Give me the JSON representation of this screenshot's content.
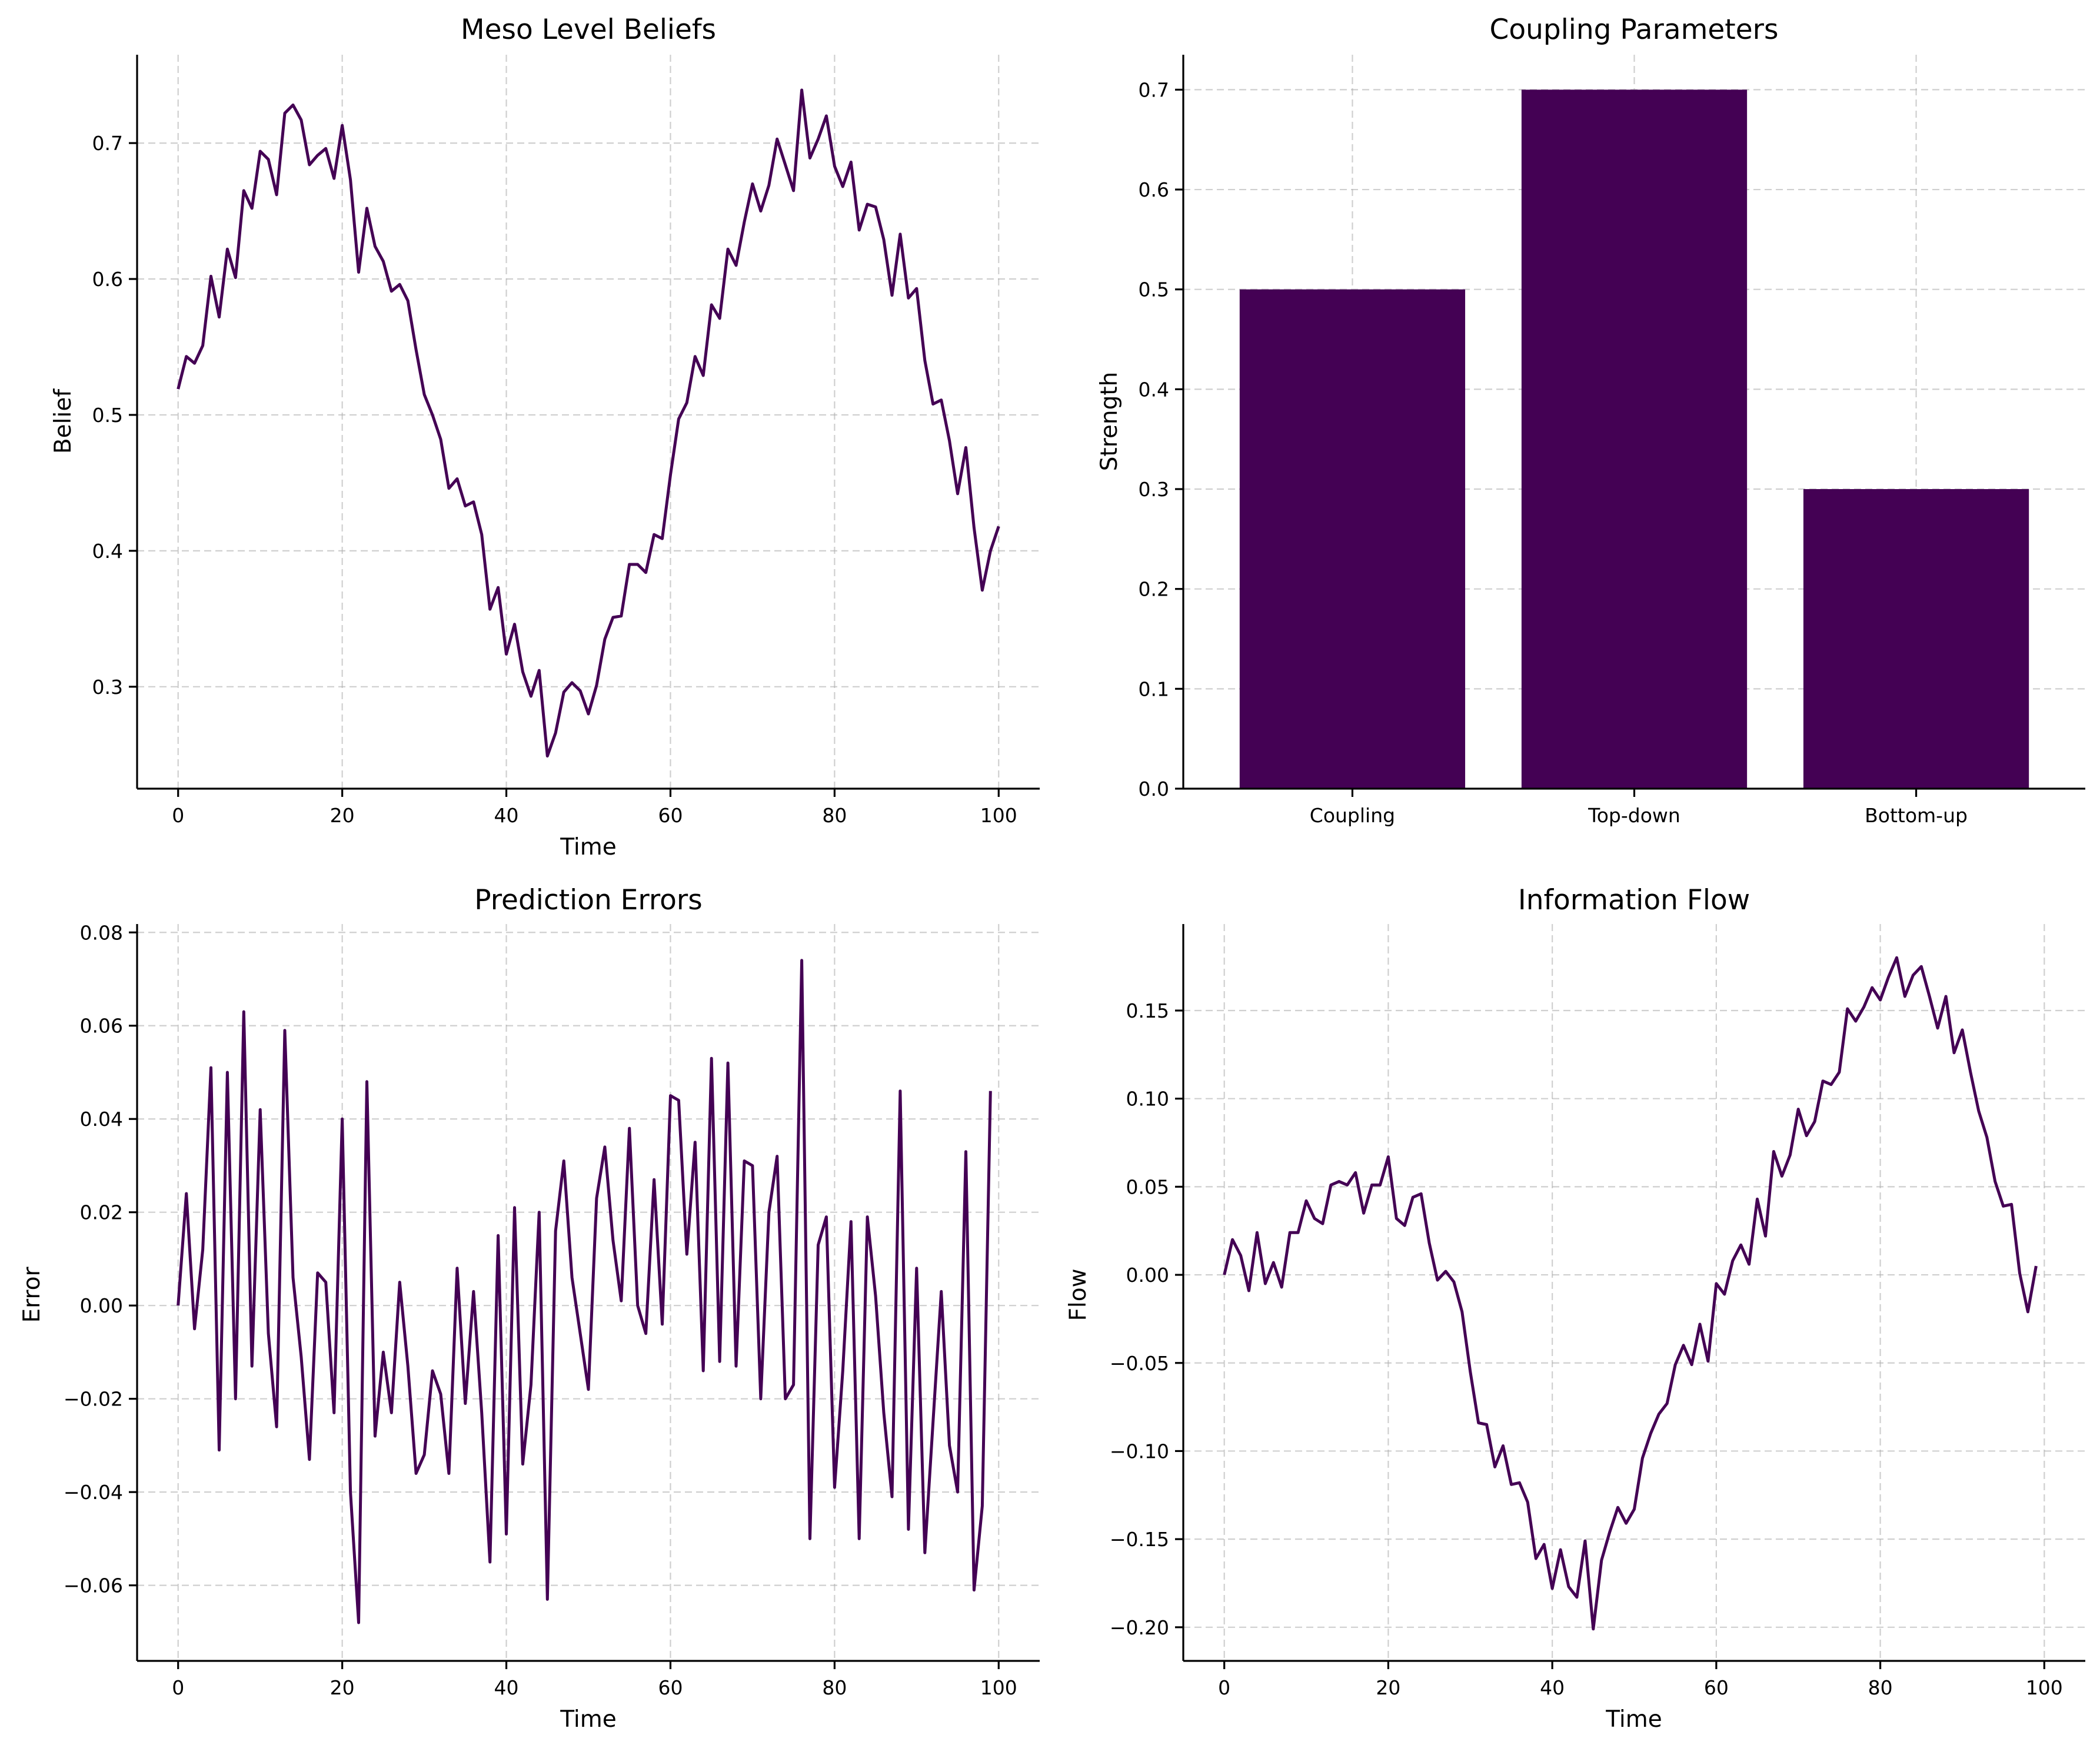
{
  "figure": {
    "line_color": "#440154",
    "bar_color": "#440154"
  },
  "chart_data": [
    {
      "id": "meso",
      "type": "line",
      "title": "Meso Level Beliefs",
      "xlabel": "Time",
      "ylabel": "Belief",
      "xlim": [
        -5,
        105
      ],
      "ylim": [
        0.225,
        0.765
      ],
      "xticks": [
        0,
        20,
        40,
        60,
        80,
        100
      ],
      "yticks": [
        0.3,
        0.4,
        0.5,
        0.6,
        0.7
      ],
      "ytick_decimals": 1,
      "grid": true,
      "series": [
        {
          "x_start": 0,
          "x_step": 1.0,
          "values": [
            0.519,
            0.543,
            0.538,
            0.551,
            0.602,
            0.572,
            0.622,
            0.601,
            0.665,
            0.652,
            0.694,
            0.688,
            0.662,
            0.722,
            0.728,
            0.717,
            0.684,
            0.691,
            0.696,
            0.674,
            0.713,
            0.673,
            0.605,
            0.652,
            0.624,
            0.613,
            0.591,
            0.596,
            0.584,
            0.548,
            0.515,
            0.5,
            0.482,
            0.446,
            0.453,
            0.433,
            0.436,
            0.412,
            0.357,
            0.373,
            0.324,
            0.346,
            0.311,
            0.293,
            0.312,
            0.249,
            0.266,
            0.296,
            0.303,
            0.297,
            0.28,
            0.301,
            0.335,
            0.351,
            0.352,
            0.39,
            0.39,
            0.384,
            0.412,
            0.409,
            0.456,
            0.497,
            0.509,
            0.543,
            0.529,
            0.581,
            0.571,
            0.622,
            0.61,
            0.642,
            0.67,
            0.65,
            0.669,
            0.703,
            0.684,
            0.665,
            0.739,
            0.689,
            0.703,
            0.72,
            0.683,
            0.668,
            0.686,
            0.636,
            0.655,
            0.653,
            0.629,
            0.588,
            0.633,
            0.586,
            0.593,
            0.54,
            0.508,
            0.511,
            0.481,
            0.442,
            0.476,
            0.417,
            0.371,
            0.4,
            0.418
          ]
        }
      ]
    },
    {
      "id": "coupling",
      "type": "bar",
      "title": "Coupling Parameters",
      "xlabel": "",
      "ylabel": "Strength",
      "categories": [
        "Coupling",
        "Top-down",
        "Bottom-up"
      ],
      "values": [
        0.5,
        0.7,
        0.3
      ],
      "ylim": [
        0,
        0.735
      ],
      "yticks": [
        0.0,
        0.1,
        0.2,
        0.3,
        0.4,
        0.5,
        0.6,
        0.7
      ],
      "ytick_decimals": 1,
      "grid": true
    },
    {
      "id": "errors",
      "type": "line",
      "title": "Prediction Errors",
      "xlabel": "Time",
      "ylabel": "Error",
      "xlim": [
        -5,
        105
      ],
      "ylim": [
        -0.0762,
        0.0818
      ],
      "xticks": [
        0,
        20,
        40,
        60,
        80,
        100
      ],
      "yticks": [
        -0.06,
        -0.04,
        -0.02,
        0.0,
        0.02,
        0.04,
        0.06,
        0.08
      ],
      "ytick_decimals": 2,
      "grid": true,
      "series": [
        {
          "x_start": 0,
          "x_step": 1.0,
          "values": [
            0.0,
            0.024,
            -0.005,
            0.012,
            0.051,
            -0.031,
            0.05,
            -0.02,
            0.063,
            -0.013,
            0.042,
            -0.006,
            -0.026,
            0.059,
            0.006,
            -0.011,
            -0.033,
            0.007,
            0.005,
            -0.023,
            0.04,
            -0.04,
            -0.068,
            0.048,
            -0.028,
            -0.01,
            -0.023,
            0.005,
            -0.013,
            -0.036,
            -0.032,
            -0.014,
            -0.019,
            -0.036,
            0.008,
            -0.021,
            0.003,
            -0.023,
            -0.055,
            0.015,
            -0.049,
            0.021,
            -0.034,
            -0.017,
            0.02,
            -0.063,
            0.016,
            0.031,
            0.006,
            -0.006,
            -0.018,
            0.023,
            0.034,
            0.014,
            0.001,
            0.038,
            0.0,
            -0.006,
            0.027,
            -0.004,
            0.045,
            0.044,
            0.011,
            0.035,
            -0.014,
            0.053,
            -0.012,
            0.052,
            -0.013,
            0.031,
            0.03,
            -0.02,
            0.02,
            0.032,
            -0.02,
            -0.017,
            0.074,
            -0.05,
            0.013,
            0.019,
            -0.039,
            -0.014,
            0.018,
            -0.05,
            0.019,
            0.002,
            -0.023,
            -0.041,
            0.046,
            -0.048,
            0.008,
            -0.053,
            -0.025,
            0.003,
            -0.03,
            -0.04,
            0.033,
            -0.061,
            -0.043,
            0.046
          ]
        }
      ]
    },
    {
      "id": "flow",
      "type": "line",
      "title": "Information Flow",
      "xlabel": "Time",
      "ylabel": "Flow",
      "xlim": [
        -5,
        105
      ],
      "ylim": [
        -0.2191,
        0.1991
      ],
      "xticks": [
        0,
        20,
        40,
        60,
        80,
        100
      ],
      "yticks": [
        -0.2,
        -0.15,
        -0.1,
        -0.05,
        0.0,
        0.05,
        0.1,
        0.15
      ],
      "ytick_decimals": 2,
      "grid": true,
      "series": [
        {
          "x_start": 0,
          "x_step": 1.0,
          "values": [
            0.0,
            0.02,
            0.011,
            -0.009,
            0.024,
            -0.005,
            0.007,
            -0.007,
            0.024,
            0.024,
            0.042,
            0.032,
            0.029,
            0.051,
            0.053,
            0.051,
            0.058,
            0.035,
            0.051,
            0.051,
            0.067,
            0.032,
            0.028,
            0.044,
            0.046,
            0.018,
            -0.003,
            0.002,
            -0.004,
            -0.021,
            -0.055,
            -0.084,
            -0.085,
            -0.109,
            -0.097,
            -0.119,
            -0.118,
            -0.129,
            -0.161,
            -0.153,
            -0.178,
            -0.156,
            -0.177,
            -0.183,
            -0.151,
            -0.201,
            -0.162,
            -0.146,
            -0.132,
            -0.141,
            -0.133,
            -0.104,
            -0.09,
            -0.079,
            -0.073,
            -0.051,
            -0.04,
            -0.051,
            -0.028,
            -0.049,
            -0.005,
            -0.011,
            0.008,
            0.017,
            0.006,
            0.043,
            0.022,
            0.07,
            0.056,
            0.068,
            0.094,
            0.079,
            0.087,
            0.11,
            0.108,
            0.115,
            0.151,
            0.144,
            0.152,
            0.163,
            0.156,
            0.169,
            0.18,
            0.158,
            0.17,
            0.175,
            0.158,
            0.14,
            0.158,
            0.126,
            0.139,
            0.115,
            0.093,
            0.078,
            0.053,
            0.039,
            0.04,
            0.001,
            -0.021,
            0.005
          ]
        }
      ]
    }
  ]
}
